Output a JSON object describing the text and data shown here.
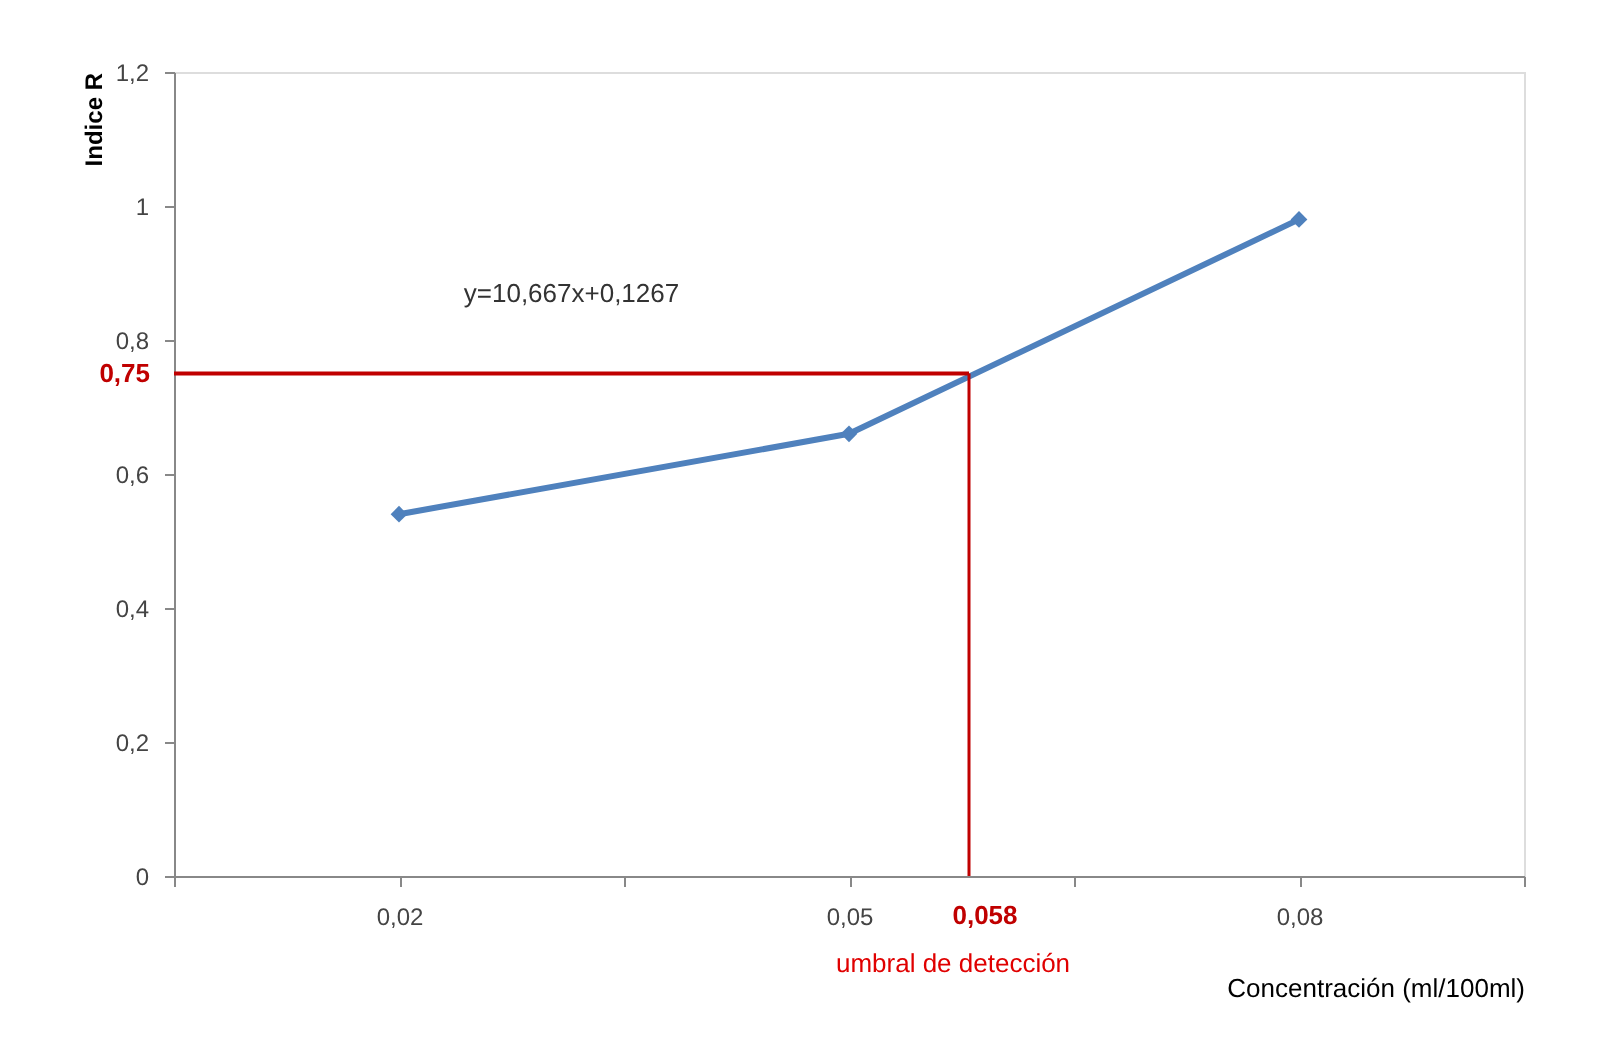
{
  "chart_data": {
    "type": "line",
    "xlabel": "Concentración (ml/100ml)",
    "ylabel": "Indice R",
    "x": [
      0.02,
      0.05,
      0.08
    ],
    "series": [
      {
        "color": "#4f81bd",
        "values": [
          0.54,
          0.66,
          0.98
        ]
      }
    ],
    "marker": "diamond",
    "line_style": "solid",
    "grid": false,
    "xlim": [
      0.005,
      0.095
    ],
    "xticks": [
      {
        "value": 0.005,
        "label": null
      },
      {
        "value": 0.02,
        "label": "0,02"
      },
      {
        "value": 0.035,
        "label": null
      },
      {
        "value": 0.05,
        "label": "0,05"
      },
      {
        "value": 0.065,
        "label": null
      },
      {
        "value": 0.08,
        "label": "0,08"
      },
      {
        "value": 0.095,
        "label": null
      }
    ],
    "ylim": [
      0,
      1.2
    ],
    "yticks": [
      {
        "value": 0,
        "label": "0"
      },
      {
        "value": 0.2,
        "label": "0,2"
      },
      {
        "value": 0.4,
        "label": "0,4"
      },
      {
        "value": 0.6,
        "label": "0,6"
      },
      {
        "value": 0.8,
        "label": "0,8"
      },
      {
        "value": 1,
        "label": "1"
      },
      {
        "value": 1.2,
        "label": "1,2"
      }
    ],
    "ref_lines": [
      {
        "axis": "y",
        "value": 0.75,
        "label": "0,75",
        "color": "#c00000"
      },
      {
        "axis": "x",
        "value": 0.058,
        "label": "0,058",
        "color": "#c00000"
      }
    ],
    "annotations": [
      "y=10,667x+0,1267",
      "umbral de detección"
    ]
  }
}
